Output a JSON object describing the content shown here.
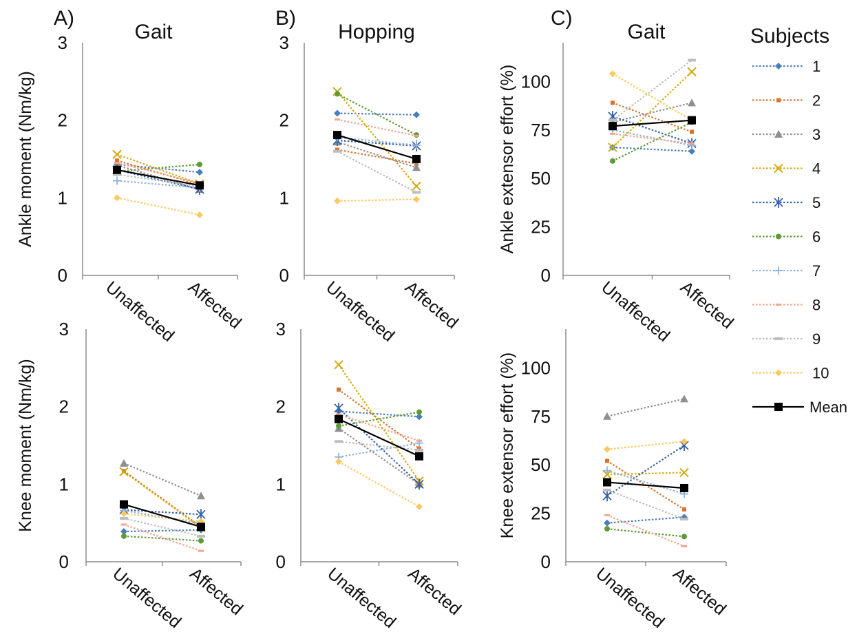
{
  "colors": {
    "axis": "#8c8c8c",
    "mean": "#000000",
    "subjects": [
      "#4a7ebb",
      "#d9732f",
      "#8f8f8f",
      "#d4a90d",
      "#3560a8",
      "#5e9a36",
      "#8fb2dc",
      "#f4a58c",
      "#bdbdbd",
      "#fcc862"
    ]
  },
  "legend": {
    "title": "Subjects",
    "entries": [
      {
        "label": "1",
        "marker": "diamond"
      },
      {
        "label": "2",
        "marker": "square-small"
      },
      {
        "label": "3",
        "marker": "triangle"
      },
      {
        "label": "4",
        "marker": "x"
      },
      {
        "label": "5",
        "marker": "star"
      },
      {
        "label": "6",
        "marker": "circle"
      },
      {
        "label": "7",
        "marker": "plus"
      },
      {
        "label": "8",
        "marker": "dash"
      },
      {
        "label": "9",
        "marker": "bar"
      },
      {
        "label": "10",
        "marker": "diamond"
      },
      {
        "label": "Mean",
        "marker": "square"
      }
    ]
  },
  "chart_data": [
    {
      "type": "line",
      "letter": "A)",
      "title": "Gait",
      "ylabel": "Ankle moment (Nm/kg)",
      "categories": [
        "Unaffected",
        "Affected"
      ],
      "ylim": [
        0,
        3
      ],
      "yticks": [
        "0",
        "1",
        "2",
        "3"
      ],
      "series": [
        {
          "name": "1",
          "values": [
            1.43,
            1.33
          ]
        },
        {
          "name": "2",
          "values": [
            1.48,
            1.17
          ]
        },
        {
          "name": "3",
          "values": [
            1.42,
            1.11
          ]
        },
        {
          "name": "4",
          "values": [
            1.56,
            1.18
          ]
        },
        {
          "name": "5",
          "values": [
            1.36,
            1.11
          ]
        },
        {
          "name": "6",
          "values": [
            1.34,
            1.43
          ]
        },
        {
          "name": "7",
          "values": [
            1.22,
            1.13
          ]
        },
        {
          "name": "8",
          "values": [
            1.45,
            1.19
          ]
        },
        {
          "name": "9",
          "values": [
            1.3,
            1.15
          ]
        },
        {
          "name": "10",
          "values": [
            1.0,
            0.78
          ]
        },
        {
          "name": "Mean",
          "values": [
            1.36,
            1.16
          ]
        }
      ]
    },
    {
      "type": "line",
      "letter": "B)",
      "title": "Hopping",
      "ylabel": "",
      "categories": [
        "Unaffected",
        "Affected"
      ],
      "ylim": [
        0,
        3
      ],
      "yticks": [
        "0",
        "1",
        "2",
        "3"
      ],
      "series": [
        {
          "name": "1",
          "values": [
            2.09,
            2.07
          ]
        },
        {
          "name": "2",
          "values": [
            1.62,
            1.44
          ]
        },
        {
          "name": "3",
          "values": [
            1.72,
            1.39
          ]
        },
        {
          "name": "4",
          "values": [
            2.37,
            1.15
          ]
        },
        {
          "name": "5",
          "values": [
            1.74,
            1.67
          ]
        },
        {
          "name": "6",
          "values": [
            2.34,
            1.81
          ]
        },
        {
          "name": "7",
          "values": [
            1.78,
            1.68
          ]
        },
        {
          "name": "8",
          "values": [
            2.01,
            1.8
          ]
        },
        {
          "name": "9",
          "values": [
            1.6,
            1.07
          ]
        },
        {
          "name": "10",
          "values": [
            0.96,
            0.98
          ]
        },
        {
          "name": "Mean",
          "values": [
            1.81,
            1.5
          ]
        }
      ]
    },
    {
      "type": "line",
      "letter": "C)",
      "title": "Gait",
      "ylabel": "Ankle extensor effort (%)",
      "categories": [
        "Unaffected",
        "Affected"
      ],
      "ylim": [
        0,
        120
      ],
      "yticks": [
        "0",
        "25",
        "50",
        "75",
        "100"
      ],
      "series": [
        {
          "name": "1",
          "values": [
            66,
            64
          ]
        },
        {
          "name": "2",
          "values": [
            89,
            74
          ]
        },
        {
          "name": "3",
          "values": [
            79,
            89
          ]
        },
        {
          "name": "4",
          "values": [
            66,
            105
          ]
        },
        {
          "name": "5",
          "values": [
            82,
            68
          ]
        },
        {
          "name": "6",
          "values": [
            59,
            79
          ]
        },
        {
          "name": "7",
          "values": [
            75,
            67
          ]
        },
        {
          "name": "8",
          "values": [
            73,
            68
          ]
        },
        {
          "name": "9",
          "values": [
            80,
            111
          ]
        },
        {
          "name": "10",
          "values": [
            104,
            80
          ]
        },
        {
          "name": "Mean",
          "values": [
            77,
            80
          ]
        }
      ]
    },
    {
      "type": "line",
      "letter": "",
      "title": "",
      "ylabel": "Knee moment (Nm/kg)",
      "categories": [
        "Unaffected",
        "Affected"
      ],
      "ylim": [
        0,
        3
      ],
      "yticks": [
        "0",
        "1",
        "2",
        "3"
      ],
      "series": [
        {
          "name": "1",
          "values": [
            0.39,
            0.41
          ]
        },
        {
          "name": "2",
          "values": [
            1.17,
            0.45
          ]
        },
        {
          "name": "3",
          "values": [
            1.27,
            0.85
          ]
        },
        {
          "name": "4",
          "values": [
            1.16,
            0.44
          ]
        },
        {
          "name": "5",
          "values": [
            0.67,
            0.61
          ]
        },
        {
          "name": "6",
          "values": [
            0.33,
            0.27
          ]
        },
        {
          "name": "7",
          "values": [
            0.66,
            0.49
          ]
        },
        {
          "name": "8",
          "values": [
            0.48,
            0.14
          ]
        },
        {
          "name": "9",
          "values": [
            0.56,
            0.33
          ]
        },
        {
          "name": "10",
          "values": [
            0.62,
            0.52
          ]
        },
        {
          "name": "Mean",
          "values": [
            0.74,
            0.45
          ]
        }
      ]
    },
    {
      "type": "line",
      "letter": "",
      "title": "",
      "ylabel": "",
      "categories": [
        "Unaffected",
        "Affected"
      ],
      "ylim": [
        0,
        3
      ],
      "yticks": [
        "0",
        "1",
        "2",
        "3"
      ],
      "series": [
        {
          "name": "1",
          "values": [
            1.94,
            1.87
          ]
        },
        {
          "name": "2",
          "values": [
            2.22,
            1.46
          ]
        },
        {
          "name": "3",
          "values": [
            1.72,
            1.0
          ]
        },
        {
          "name": "4",
          "values": [
            2.54,
            1.04
          ]
        },
        {
          "name": "5",
          "values": [
            1.98,
            1.0
          ]
        },
        {
          "name": "6",
          "values": [
            1.75,
            1.93
          ]
        },
        {
          "name": "7",
          "values": [
            1.35,
            1.53
          ]
        },
        {
          "name": "8",
          "values": [
            1.9,
            1.56
          ]
        },
        {
          "name": "9",
          "values": [
            1.55,
            1.44
          ]
        },
        {
          "name": "10",
          "values": [
            1.29,
            0.71
          ]
        },
        {
          "name": "Mean",
          "values": [
            1.84,
            1.36
          ]
        }
      ]
    },
    {
      "type": "line",
      "letter": "",
      "title": "",
      "ylabel": "Knee extensor effort (%)",
      "categories": [
        "Unaffected",
        "Affected"
      ],
      "ylim": [
        0,
        120
      ],
      "yticks": [
        "0",
        "25",
        "50",
        "75",
        "100"
      ],
      "series": [
        {
          "name": "1",
          "values": [
            20,
            23
          ]
        },
        {
          "name": "2",
          "values": [
            52,
            27
          ]
        },
        {
          "name": "3",
          "values": [
            75,
            84
          ]
        },
        {
          "name": "4",
          "values": [
            45,
            46
          ]
        },
        {
          "name": "5",
          "values": [
            34,
            60
          ]
        },
        {
          "name": "6",
          "values": [
            17,
            13
          ]
        },
        {
          "name": "7",
          "values": [
            47,
            35
          ]
        },
        {
          "name": "8",
          "values": [
            24,
            8
          ]
        },
        {
          "name": "9",
          "values": [
            37,
            22
          ]
        },
        {
          "name": "10",
          "values": [
            58,
            62
          ]
        },
        {
          "name": "Mean",
          "values": [
            41,
            38
          ]
        }
      ]
    }
  ]
}
